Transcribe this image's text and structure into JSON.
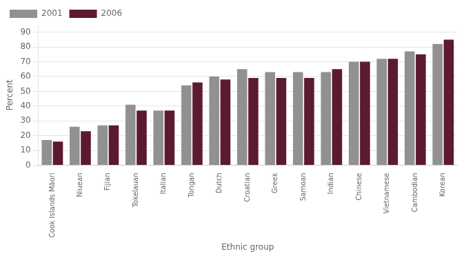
{
  "chart_data": {
    "type": "bar",
    "categories": [
      "Cook Islands Māori",
      "Niuean",
      "Fijian",
      "Tokelauan",
      "Italian",
      "Tongan",
      "Dutch",
      "Croatian",
      "Greek",
      "Samoan",
      "Indian",
      "Chinese",
      "Vietnamese",
      "Cambodian",
      "Korean"
    ],
    "series": [
      {
        "name": "2001",
        "color": "#919191",
        "values": [
          17,
          26,
          27,
          41,
          37,
          54,
          60,
          65,
          63,
          63,
          63,
          70,
          72,
          77,
          82
        ]
      },
      {
        "name": "2006",
        "color": "#5c1a30",
        "values": [
          16,
          23,
          27,
          37,
          37,
          56,
          58,
          59,
          59,
          59,
          65,
          70,
          72,
          75,
          85
        ]
      }
    ],
    "xlabel": "Ethnic group",
    "ylabel": "Percent",
    "ylim": [
      0,
      95
    ],
    "yticks": [
      0,
      10,
      20,
      30,
      40,
      50,
      60,
      70,
      80,
      90
    ],
    "grid": true,
    "legend": "upper left"
  }
}
